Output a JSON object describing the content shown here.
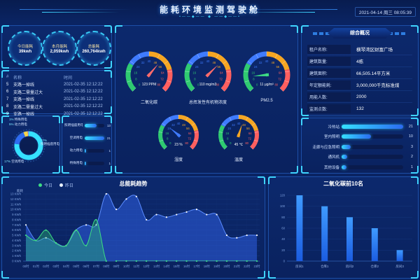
{
  "header": {
    "title": "能耗环境监测驾驶舱",
    "ornament": "•——◆—— ◆ ——◆——•",
    "datetime": "2021-04-14 周三 08:05:39"
  },
  "stats": {
    "items": [
      {
        "label": "今日能耗",
        "value": "39kwh"
      },
      {
        "label": "本月能耗",
        "value": "2,059kwh"
      },
      {
        "label": "总能耗",
        "value": "260,764kwh"
      }
    ]
  },
  "alarm_table": {
    "columns": [
      "#",
      "名称",
      "时间"
    ],
    "rows": [
      {
        "id": "5",
        "name": "支路一掉线",
        "time": "2021-02-35 12:12:22"
      },
      {
        "id": "6",
        "name": "支路二需量过大",
        "time": "2021-02-35 12:12:22"
      },
      {
        "id": "7",
        "name": "支路一掉线",
        "time": "2021-02-35 12:12:22"
      },
      {
        "id": "8",
        "name": "支路二需量过大",
        "time": "2021-02-35 12:12:22"
      },
      {
        "id": "9",
        "name": "支路一掉线",
        "time": "2021-02-35 12:12:22"
      }
    ]
  },
  "overview": {
    "title": "综合概况",
    "rows": [
      {
        "label": "租户名称:",
        "value": "横琴湾区财富广场"
      },
      {
        "label": "建筑数量:",
        "value": "4栋"
      },
      {
        "label": "建筑面积:",
        "value": "66,505.14平方米"
      },
      {
        "label": "年定额能耗:",
        "value": "3,000,000千克标准煤"
      },
      {
        "label": "用能人数:",
        "value": "2000"
      },
      {
        "label": "监测点数:",
        "value": "132"
      }
    ]
  },
  "chart_data": [
    {
      "id": "energy-structure-donut",
      "type": "pie",
      "segments": [
        {
          "label": "照明插座用电",
          "pct": "77%",
          "value": 77,
          "color": "#35E1FF"
        },
        {
          "label": "空调用电",
          "pct": "17%",
          "value": 17,
          "color": "#2E6BF0"
        },
        {
          "label": "动力用电",
          "pct": "5%",
          "value": 5,
          "color": "#F6D54A"
        },
        {
          "label": "特殊用电",
          "pct": "1%",
          "value": 1,
          "color": "#8F7DF8"
        }
      ]
    },
    {
      "id": "usage-bars",
      "type": "bar",
      "orientation": "horizontal",
      "categories": [
        "照明插座用电",
        "空调用电",
        "动力用电",
        "特殊用电"
      ],
      "values": [
        13,
        21,
        1,
        1
      ],
      "max": 21
    },
    {
      "id": "env-gauges",
      "type": "gauge",
      "min": 0,
      "max": 80,
      "ticks": [
        0,
        8,
        16,
        24,
        32,
        40,
        48,
        56,
        64,
        72,
        80
      ],
      "bands": [
        {
          "from": 0,
          "to": 0.28,
          "color": "#2FCA71"
        },
        {
          "from": 0.28,
          "to": 0.5,
          "color": "#3F7BFF"
        },
        {
          "from": 0.5,
          "to": 0.78,
          "color": "#F5A623"
        },
        {
          "from": 0.78,
          "to": 1,
          "color": "#FF5F5F"
        }
      ],
      "items": [
        {
          "label": "二氧化碳",
          "value": 123,
          "text": "123 PPM",
          "needle_deg": 40,
          "needle_color": "#FF6B6B",
          "size": "big"
        },
        {
          "label": "总挥发性有机物浓度",
          "value": 110,
          "text": "110 mg/m3",
          "needle_deg": 45,
          "needle_color": "#FF6B6B",
          "size": "big"
        },
        {
          "label": "PM2.5",
          "value": 11,
          "text": "11 μg/m³",
          "needle_deg": -95,
          "needle_color": "#3DDC84",
          "size": "big"
        },
        {
          "label": "湿度",
          "value": 23,
          "text": "23 %",
          "needle_deg": -50,
          "needle_color": "#3F7BFF",
          "size": "small"
        },
        {
          "label": "温度",
          "value": 45,
          "text": "45 ℃",
          "needle_deg": 17,
          "needle_color": "#F5A623",
          "size": "small"
        }
      ]
    },
    {
      "id": "device-alarm-bars",
      "type": "bar",
      "orientation": "horizontal",
      "categories": [
        "冷热站",
        "室内照明",
        "走廊与应急照明",
        "通风机",
        "其他设备"
      ],
      "values": [
        21,
        10,
        3,
        2,
        1
      ],
      "max": 21
    },
    {
      "id": "energy-trend",
      "type": "area",
      "title": "总能耗趋势",
      "ylabel": "能耗",
      "legend": [
        "今日",
        "昨日"
      ],
      "x": [
        "00时",
        "01时",
        "02时",
        "03时",
        "04时",
        "05时",
        "06时",
        "07时",
        "08时",
        "09时",
        "10时",
        "11时",
        "12时",
        "13时",
        "14时",
        "15时",
        "16时",
        "17时",
        "18时",
        "19时",
        "20时",
        "21时",
        "22时",
        "23时"
      ],
      "series": [
        {
          "name": "昨日",
          "color": "#5B8CFF",
          "fill": "rgba(43,90,215,0.60)",
          "dot": "#FFFFFF",
          "values": [
            7,
            4,
            4.5,
            3.5,
            3,
            6,
            7,
            7,
            13,
            10,
            12,
            12.5,
            8,
            9,
            8.5,
            9,
            9.5,
            10,
            9,
            9,
            5,
            4.5,
            5,
            5
          ]
        },
        {
          "name": "今日",
          "color": "#3DDC84",
          "fill": "rgba(46,204,113,0.35)",
          "dot": "#3DDC84",
          "values": [
            5,
            4,
            6,
            3.5,
            3,
            6,
            3,
            8,
            0,
            0,
            0,
            0,
            0,
            0,
            0,
            0,
            0,
            0,
            0,
            0,
            0,
            0,
            0,
            0
          ]
        }
      ],
      "ylim": [
        0,
        13
      ],
      "ytick_step": 1,
      "ytick_unit": "KWh"
    },
    {
      "id": "co2-top10",
      "type": "bar",
      "title": "二氧化碳前10名",
      "categories": [
        "房间1",
        "仓库1",
        "房间2",
        "仓库2",
        "房间3"
      ],
      "values": [
        120,
        100,
        80,
        60,
        20
      ],
      "ylim": [
        0,
        120
      ],
      "ytick_step": 20,
      "bar_color": "#2176FF"
    }
  ]
}
